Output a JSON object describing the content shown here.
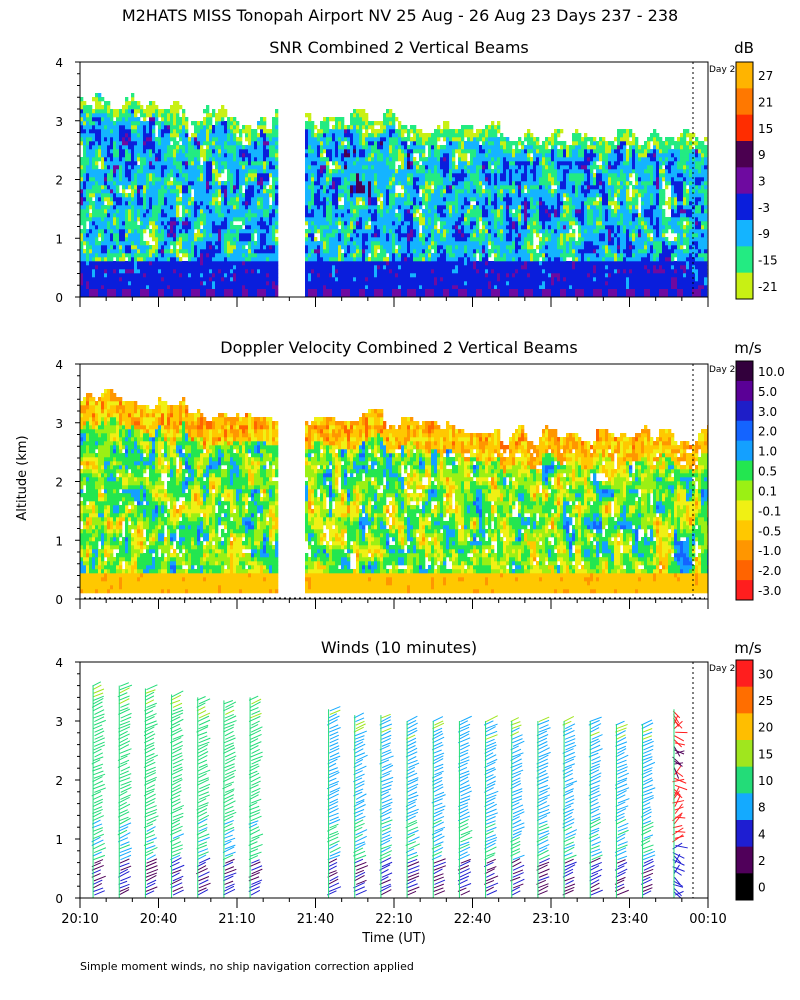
{
  "figure": {
    "title": "M2HATS MISS Tonopah Airport NV  25 Aug - 26 Aug 23 Days 237 - 238",
    "footnote": "Simple moment winds, no ship navigation correction applied",
    "ylabel": "Altitude (km)",
    "xlabel": "Time (UT)",
    "day_marker": "Day 2"
  },
  "chart_data": [
    {
      "type": "heatmap",
      "title": "SNR Combined 2 Vertical Beams",
      "units": "dB",
      "ylabel": "Altitude (km)",
      "ylim": [
        0,
        4
      ],
      "yticks": [
        0,
        1,
        2,
        3,
        4
      ],
      "x_range_minutes": [
        0,
        240
      ],
      "data_gap_minutes": [
        75,
        85
      ],
      "echo_top_km": [
        3.3,
        3.2,
        3.1,
        3.0,
        3.0,
        3.0,
        2.9,
        2.8,
        2.7,
        2.7,
        2.7,
        2.7
      ],
      "color_scale": {
        "labels": [
          "27",
          "21",
          "15",
          "9",
          "3",
          "-3",
          "-9",
          "-15",
          "-21"
        ],
        "colors": [
          "#ffb400",
          "#ff7800",
          "#ff2d00",
          "#4b0050",
          "#6e0aa0",
          "#0a1edc",
          "#14b4ff",
          "#23eb82",
          "#c8f014"
        ]
      }
    },
    {
      "type": "heatmap",
      "title": "Doppler Velocity Combined 2 Vertical Beams",
      "units": "m/s",
      "ylabel": "Altitude (km)",
      "ylim": [
        0,
        4
      ],
      "yticks": [
        0,
        1,
        2,
        3,
        4
      ],
      "x_range_minutes": [
        0,
        240
      ],
      "data_gap_minutes": [
        75,
        85
      ],
      "color_scale": {
        "labels": [
          "10.0",
          "5.0",
          "3.0",
          "2.0",
          "1.0",
          "0.5",
          "0.1",
          "-0.1",
          "-0.5",
          "-1.0",
          "-2.0",
          "-3.0"
        ],
        "colors": [
          "#32003c",
          "#5a0096",
          "#1e1ec8",
          "#1464ff",
          "#14a0ff",
          "#23e650",
          "#9bf014",
          "#f0f014",
          "#ffc800",
          "#ff9600",
          "#ff6400",
          "#ff1e1e"
        ]
      }
    },
    {
      "type": "wind_barbs",
      "title": "Winds (10 minutes)",
      "units": "m/s",
      "ylabel": "Altitude (km)",
      "xlabel": "Time (UT)",
      "ylim": [
        0,
        4
      ],
      "yticks": [
        0,
        1,
        2,
        3,
        4
      ],
      "x_range_minutes": [
        0,
        240
      ],
      "xtick_labels": [
        "20:10",
        "20:40",
        "21:10",
        "21:40",
        "22:10",
        "22:40",
        "23:10",
        "23:40",
        "00:10"
      ],
      "profile_times_minutes": [
        5,
        15,
        25,
        35,
        45,
        55,
        65,
        95,
        105,
        115,
        125,
        135,
        145,
        155,
        165,
        175,
        185,
        195,
        205,
        215,
        227
      ],
      "profile_tops_km": [
        3.6,
        3.6,
        3.55,
        3.45,
        3.4,
        3.35,
        3.4,
        3.2,
        3.1,
        3.1,
        3.0,
        3.0,
        3.0,
        3.0,
        3.0,
        3.0,
        3.0,
        3.0,
        2.95,
        2.95,
        3.2
      ],
      "color_scale": {
        "labels": [
          "30",
          "25",
          "20",
          "15",
          "10",
          "8",
          "4",
          "2",
          "0"
        ],
        "colors": [
          "#ff1e1e",
          "#ff6e00",
          "#ffbe00",
          "#a0e61e",
          "#23dc78",
          "#14aaff",
          "#1e1ed2",
          "#50005a",
          "#000000"
        ]
      }
    }
  ]
}
